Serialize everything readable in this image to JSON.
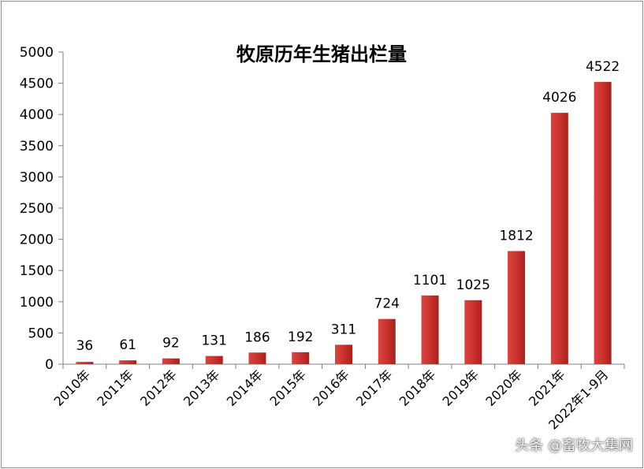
{
  "chart_data": {
    "type": "bar",
    "title": "牧原历年生猪出栏量",
    "xlabel": "",
    "ylabel": "",
    "categories": [
      "2010年",
      "2011年",
      "2012年",
      "2013年",
      "2014年",
      "2015年",
      "2016年",
      "2017年",
      "2018年",
      "2019年",
      "2020年",
      "2021年",
      "2022年1-9月"
    ],
    "values": [
      36,
      61,
      92,
      131,
      186,
      192,
      311,
      724,
      1101,
      1025,
      1812,
      4026,
      4522
    ],
    "ylim": [
      0,
      5000
    ],
    "yticks": [
      "0",
      "500",
      "1000",
      "1500",
      "2000",
      "2500",
      "3000",
      "3500",
      "4000",
      "4500",
      "5000"
    ],
    "data_labels": [
      "36",
      "61",
      "92",
      "131",
      "186",
      "192",
      "311",
      "724",
      "1101",
      "1025",
      "1812",
      "4026",
      "4522"
    ],
    "bar_color": "#c9302c",
    "bar_color_dark": "#a5221f",
    "grid": false,
    "legend": "none"
  },
  "watermark": "头条 @畜牧大集网"
}
